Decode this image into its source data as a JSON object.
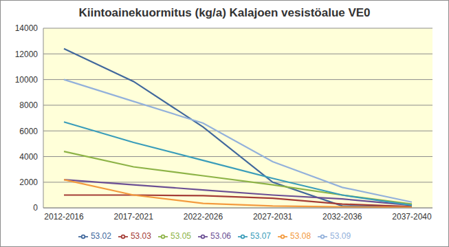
{
  "chart_data": {
    "type": "line",
    "title": "Kiintoainekuormitus (kg/a) Kalajoen vesistöalue VE0",
    "categories": [
      "2012-2016",
      "2017-2021",
      "2022-2026",
      "2027-2031",
      "2032-2036",
      "2037-2040"
    ],
    "series": [
      {
        "name": "53.02",
        "color": "#41689c",
        "values": [
          12400,
          9850,
          6300,
          2000,
          150,
          100
        ]
      },
      {
        "name": "53.03",
        "color": "#a43c36",
        "values": [
          1000,
          1000,
          950,
          750,
          300,
          100
        ]
      },
      {
        "name": "53.05",
        "color": "#8db347",
        "values": [
          4400,
          3200,
          2500,
          1800,
          1000,
          300
        ]
      },
      {
        "name": "53.06",
        "color": "#6b4f94",
        "values": [
          2200,
          1800,
          1400,
          1000,
          700,
          200
        ]
      },
      {
        "name": "53.07",
        "color": "#3a9dba",
        "values": [
          6700,
          5100,
          3700,
          2300,
          1000,
          200
        ]
      },
      {
        "name": "53.08",
        "color": "#f39a3e",
        "values": [
          2200,
          1000,
          350,
          150,
          80,
          50
        ]
      },
      {
        "name": "53.09",
        "color": "#93b1db",
        "values": [
          10000,
          8300,
          6600,
          3600,
          1600,
          450
        ]
      }
    ],
    "ylim": [
      0,
      14000
    ],
    "yticks": [
      0,
      2000,
      4000,
      6000,
      8000,
      10000,
      12000,
      14000
    ],
    "grid": true,
    "legend": "bottom"
  }
}
